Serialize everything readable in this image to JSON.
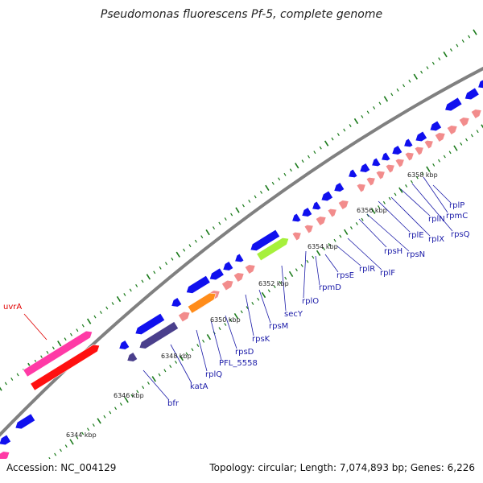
{
  "title": "Pseudomonas fluorescens Pf-5, complete genome",
  "footer": {
    "accession": "Accession: NC_004129",
    "summary": "Topology: circular; Length: 7,074,893 bp; Genes: 6,226"
  },
  "colors": {
    "backbone": "#808080",
    "tick": "#1a7a1a",
    "blue_gene": "#1010ee",
    "salmon_gene": "#f28c8c",
    "pink_gene": "#ff3aa6",
    "red_gene": "#ff1010",
    "dark_purple_gene": "#4a3f8c",
    "orange_gene": "#ff8c1a",
    "lime_gene": "#a6f03c",
    "label_blue": "#1a1aa8",
    "label_red": "#e00000"
  },
  "scale_labels": [
    "6344 kbp",
    "6346 kbp",
    "6348 kbp",
    "6350 kbp",
    "6352 kbp",
    "6354 kbp",
    "6356 kbp",
    "6358 kbp"
  ],
  "gene_labels": [
    "uvrA",
    "bfr",
    "katA",
    "rplQ",
    "PFL_5558",
    "rpsD",
    "rpsK",
    "rpsM",
    "secY",
    "rplO",
    "rpmD",
    "rpsE",
    "rplR",
    "rplF",
    "rpsH",
    "rpsN",
    "rplE",
    "rplX",
    "rplN",
    "rpsQ",
    "rpmC",
    "rplP"
  ]
}
